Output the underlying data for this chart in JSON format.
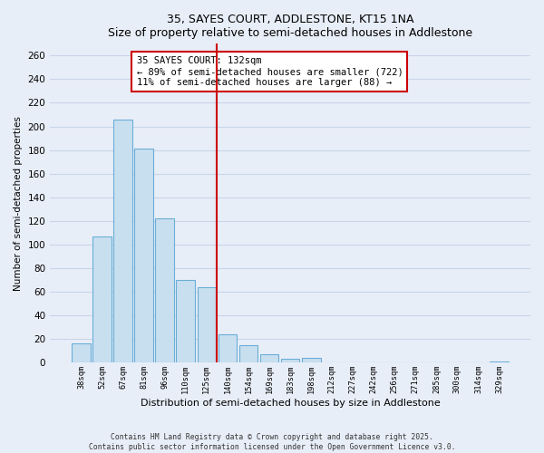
{
  "title": "35, SAYES COURT, ADDLESTONE, KT15 1NA",
  "subtitle": "Size of property relative to semi-detached houses in Addlestone",
  "xlabel": "Distribution of semi-detached houses by size in Addlestone",
  "ylabel": "Number of semi-detached properties",
  "bar_labels": [
    "38sqm",
    "52sqm",
    "67sqm",
    "81sqm",
    "96sqm",
    "110sqm",
    "125sqm",
    "140sqm",
    "154sqm",
    "169sqm",
    "183sqm",
    "198sqm",
    "212sqm",
    "227sqm",
    "242sqm",
    "256sqm",
    "271sqm",
    "285sqm",
    "300sqm",
    "314sqm",
    "329sqm"
  ],
  "bar_values": [
    16,
    107,
    206,
    181,
    122,
    70,
    64,
    24,
    15,
    7,
    3,
    4,
    0,
    0,
    0,
    0,
    0,
    0,
    0,
    0,
    1
  ],
  "bar_color": "#c8dff0",
  "bar_edge_color": "#6baed6",
  "vline_color": "#cc0000",
  "annotation_lines": [
    "35 SAYES COURT: 132sqm",
    "← 89% of semi-detached houses are smaller (722)",
    "11% of semi-detached houses are larger (88) →"
  ],
  "ylim": [
    0,
    270
  ],
  "yticks": [
    0,
    20,
    40,
    60,
    80,
    100,
    120,
    140,
    160,
    180,
    200,
    220,
    240,
    260
  ],
  "footer_line1": "Contains HM Land Registry data © Crown copyright and database right 2025.",
  "footer_line2": "Contains public sector information licensed under the Open Government Licence v3.0.",
  "bg_color": "#e8eef8",
  "grid_color": "#c8d4e8"
}
